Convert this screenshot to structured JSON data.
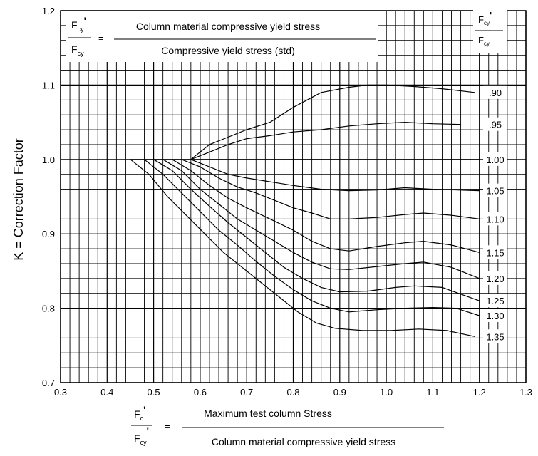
{
  "chart_data": {
    "type": "line",
    "xlim": [
      0.3,
      1.3
    ],
    "ylim": [
      0.7,
      1.2
    ],
    "x_ticks": [
      "0.3",
      "0.4",
      "0.5",
      "0.6",
      "0.7",
      "0.8",
      "0.9",
      "1.0",
      "1.1",
      "1.2",
      "1.3"
    ],
    "y_ticks": [
      "0.7",
      "0.8",
      "0.9",
      "1.0",
      "1.1",
      "1.2"
    ],
    "ylabel": "K = Correction Factor",
    "grid": true,
    "legend": {
      "header_num": "F",
      "header_num_sub": "cy",
      "header_num_prime": "'",
      "header_den": "F",
      "header_den_sub": "cy",
      "placement": "right"
    },
    "top_formula": {
      "lhs_num": "F",
      "lhs_num_sub": "cy",
      "lhs_prime": "'",
      "lhs_den": "F",
      "lhs_den_sub": "cy",
      "equals": "=",
      "numerator": "Column material compressive yield stress",
      "denominator": "Compressive yield stress (std)"
    },
    "bottom_formula": {
      "lhs_num": "F",
      "lhs_num_sub": "c",
      "lhs_prime": "'",
      "lhs_den": "F",
      "lhs_den_sub": "cy",
      "equals": "=",
      "numerator": "Maximum test column Stress",
      "denominator": "Column material compressive yield stress"
    },
    "series": [
      {
        "name": ".90",
        "points": [
          [
            0.58,
            1.0
          ],
          [
            0.62,
            1.02
          ],
          [
            0.66,
            1.03
          ],
          [
            0.7,
            1.04
          ],
          [
            0.75,
            1.05
          ],
          [
            0.8,
            1.07
          ],
          [
            0.86,
            1.09
          ],
          [
            0.92,
            1.097
          ],
          [
            0.96,
            1.1
          ],
          [
            1.0,
            1.1
          ],
          [
            1.06,
            1.098
          ],
          [
            1.12,
            1.095
          ],
          [
            1.19,
            1.09
          ]
        ]
      },
      {
        "name": ".95",
        "points": [
          [
            0.58,
            1.0
          ],
          [
            0.62,
            1.01
          ],
          [
            0.66,
            1.02
          ],
          [
            0.7,
            1.028
          ],
          [
            0.75,
            1.032
          ],
          [
            0.8,
            1.037
          ],
          [
            0.86,
            1.04
          ],
          [
            0.92,
            1.045
          ],
          [
            0.98,
            1.048
          ],
          [
            1.04,
            1.05
          ],
          [
            1.1,
            1.048
          ],
          [
            1.16,
            1.047
          ]
        ]
      },
      {
        "name": "1.00",
        "points": [
          [
            0.45,
            1.0
          ],
          [
            0.58,
            1.0
          ],
          [
            1.2,
            1.0
          ]
        ]
      },
      {
        "name": "1.05",
        "points": [
          [
            0.58,
            1.0
          ],
          [
            0.62,
            0.99
          ],
          [
            0.66,
            0.98
          ],
          [
            0.7,
            0.975
          ],
          [
            0.75,
            0.97
          ],
          [
            0.8,
            0.965
          ],
          [
            0.86,
            0.96
          ],
          [
            0.92,
            0.958
          ],
          [
            0.98,
            0.959
          ],
          [
            1.04,
            0.962
          ],
          [
            1.1,
            0.96
          ],
          [
            1.2,
            0.958
          ]
        ]
      },
      {
        "name": "1.10",
        "points": [
          [
            0.56,
            1.0
          ],
          [
            0.6,
            0.99
          ],
          [
            0.64,
            0.975
          ],
          [
            0.68,
            0.963
          ],
          [
            0.72,
            0.955
          ],
          [
            0.76,
            0.945
          ],
          [
            0.8,
            0.935
          ],
          [
            0.84,
            0.928
          ],
          [
            0.88,
            0.92
          ],
          [
            0.92,
            0.92
          ],
          [
            0.98,
            0.922
          ],
          [
            1.04,
            0.926
          ],
          [
            1.08,
            0.928
          ],
          [
            1.14,
            0.925
          ],
          [
            1.2,
            0.92
          ]
        ]
      },
      {
        "name": "1.15",
        "points": [
          [
            0.54,
            1.0
          ],
          [
            0.58,
            0.985
          ],
          [
            0.62,
            0.965
          ],
          [
            0.66,
            0.948
          ],
          [
            0.7,
            0.935
          ],
          [
            0.75,
            0.92
          ],
          [
            0.8,
            0.905
          ],
          [
            0.84,
            0.89
          ],
          [
            0.88,
            0.88
          ],
          [
            0.92,
            0.877
          ],
          [
            0.98,
            0.883
          ],
          [
            1.04,
            0.888
          ],
          [
            1.08,
            0.89
          ],
          [
            1.14,
            0.885
          ],
          [
            1.2,
            0.875
          ]
        ]
      },
      {
        "name": "1.20",
        "points": [
          [
            0.52,
            1.0
          ],
          [
            0.56,
            0.985
          ],
          [
            0.6,
            0.96
          ],
          [
            0.64,
            0.94
          ],
          [
            0.68,
            0.92
          ],
          [
            0.72,
            0.905
          ],
          [
            0.76,
            0.89
          ],
          [
            0.8,
            0.875
          ],
          [
            0.84,
            0.862
          ],
          [
            0.88,
            0.853
          ],
          [
            0.92,
            0.852
          ],
          [
            0.98,
            0.856
          ],
          [
            1.04,
            0.86
          ],
          [
            1.08,
            0.862
          ],
          [
            1.14,
            0.855
          ],
          [
            1.2,
            0.84
          ]
        ]
      },
      {
        "name": "1.25",
        "points": [
          [
            0.5,
            1.0
          ],
          [
            0.54,
            0.985
          ],
          [
            0.58,
            0.96
          ],
          [
            0.62,
            0.937
          ],
          [
            0.66,
            0.915
          ],
          [
            0.7,
            0.895
          ],
          [
            0.74,
            0.875
          ],
          [
            0.78,
            0.855
          ],
          [
            0.82,
            0.84
          ],
          [
            0.86,
            0.828
          ],
          [
            0.9,
            0.822
          ],
          [
            0.96,
            0.823
          ],
          [
            1.02,
            0.828
          ],
          [
            1.06,
            0.83
          ],
          [
            1.12,
            0.828
          ],
          [
            1.2,
            0.81
          ]
        ]
      },
      {
        "name": "1.30",
        "points": [
          [
            0.48,
            1.0
          ],
          [
            0.52,
            0.98
          ],
          [
            0.56,
            0.955
          ],
          [
            0.6,
            0.93
          ],
          [
            0.64,
            0.905
          ],
          [
            0.68,
            0.885
          ],
          [
            0.72,
            0.863
          ],
          [
            0.76,
            0.843
          ],
          [
            0.8,
            0.825
          ],
          [
            0.84,
            0.81
          ],
          [
            0.88,
            0.8
          ],
          [
            0.92,
            0.795
          ],
          [
            0.98,
            0.798
          ],
          [
            1.04,
            0.8
          ],
          [
            1.1,
            0.801
          ],
          [
            1.15,
            0.8
          ],
          [
            1.2,
            0.79
          ]
        ]
      },
      {
        "name": "1.35",
        "points": [
          [
            0.45,
            1.0
          ],
          [
            0.49,
            0.98
          ],
          [
            0.53,
            0.95
          ],
          [
            0.57,
            0.925
          ],
          [
            0.61,
            0.9
          ],
          [
            0.65,
            0.875
          ],
          [
            0.69,
            0.855
          ],
          [
            0.73,
            0.835
          ],
          [
            0.77,
            0.815
          ],
          [
            0.81,
            0.795
          ],
          [
            0.85,
            0.78
          ],
          [
            0.89,
            0.773
          ],
          [
            0.95,
            0.77
          ],
          [
            1.01,
            0.77
          ],
          [
            1.07,
            0.772
          ],
          [
            1.13,
            0.77
          ],
          [
            1.19,
            0.762
          ]
        ]
      }
    ]
  }
}
